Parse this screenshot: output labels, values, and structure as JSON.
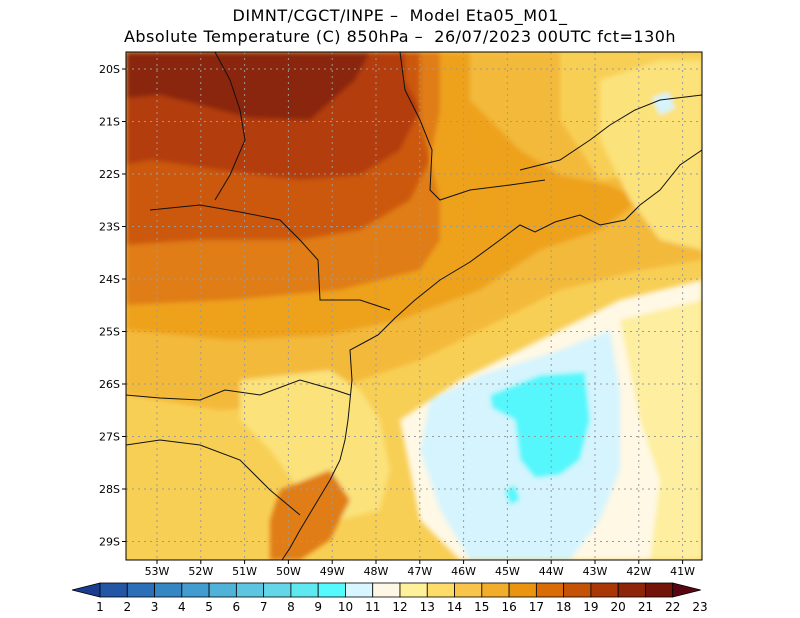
{
  "header": {
    "line1": "DIMNT/CGCT/INPE –  Model Eta05_M01_",
    "line2": "Absolute Temperature (C) 850hPa –  26/07/2023 00UTC fct=130h"
  },
  "map": {
    "lat_labels": [
      "20S",
      "21S",
      "22S",
      "23S",
      "24S",
      "25S",
      "26S",
      "27S",
      "28S",
      "29S"
    ],
    "lon_labels": [
      "53W",
      "52W",
      "51W",
      "50W",
      "49W",
      "48W",
      "47W",
      "46W",
      "45W",
      "44W",
      "43W",
      "42W",
      "41W"
    ]
  },
  "colorbar": {
    "labels": [
      "1",
      "2",
      "3",
      "4",
      "5",
      "6",
      "7",
      "8",
      "9",
      "10",
      "11",
      "12",
      "13",
      "14",
      "15",
      "16",
      "17",
      "18",
      "19",
      "20",
      "21",
      "22",
      "23"
    ],
    "colors": [
      "#1b3d8f",
      "#2257a6",
      "#2a6fb8",
      "#3587c4",
      "#429ccf",
      "#4fb2d8",
      "#5cc6e0",
      "#63d6e8",
      "#5ee8f0",
      "#55faff",
      "#d8f6ff",
      "#fff7e6",
      "#fff19a",
      "#fddc6a",
      "#f8c54a",
      "#f2ae2a",
      "#eb9410",
      "#da6c08",
      "#c65206",
      "#aa3806",
      "#8e2408",
      "#72140a",
      "#5a0612"
    ]
  },
  "palette": {
    "deep_red": "#8a2510",
    "dark_orange_red": "#b33d0e",
    "orange_red": "#cc580d",
    "dark_orange": "#e07d12",
    "orange": "#eea21c",
    "light_orange": "#f3b93a",
    "yellow_orange": "#f8cf55",
    "yellow": "#fbe27a",
    "pale_yellow": "#fdef9f",
    "cream": "#fff8e4",
    "light_blue": "#d6f4fd",
    "cyan": "#55f7fc"
  }
}
